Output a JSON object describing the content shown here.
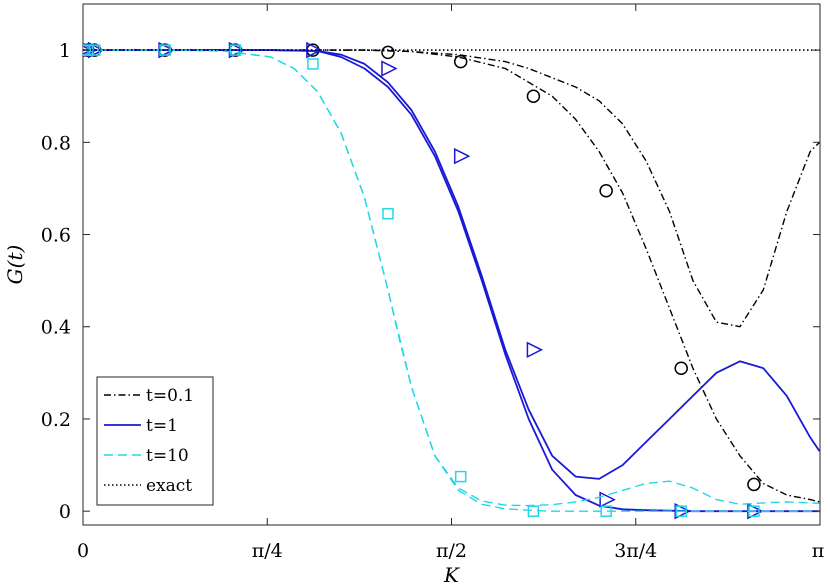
{
  "chart_data": {
    "type": "line",
    "xlabel": "K",
    "ylabel": "G(t)",
    "xlim": [
      0,
      3.14159
    ],
    "ylim": [
      -0.03,
      1.1
    ],
    "grid": false,
    "legend_position": "bottom-left",
    "x_ticks": [
      {
        "value": 0,
        "label": "0"
      },
      {
        "value": 0.7854,
        "label": "π/4"
      },
      {
        "value": 1.5708,
        "label": "π/2"
      },
      {
        "value": 2.3562,
        "label": "3π/4"
      },
      {
        "value": 3.14159,
        "label": "π"
      }
    ],
    "y_ticks": [
      {
        "value": 0,
        "label": "0"
      },
      {
        "value": 0.2,
        "label": "0.2"
      },
      {
        "value": 0.4,
        "label": "0.4"
      },
      {
        "value": 0.6,
        "label": "0.6"
      },
      {
        "value": 0.8,
        "label": "0.8"
      },
      {
        "value": 1,
        "label": "1"
      }
    ],
    "legend": [
      {
        "label": "t=0.1",
        "color": "#000000",
        "dash": "dashdot"
      },
      {
        "label": "t=1",
        "color": "#1a1ad6",
        "dash": "solid"
      },
      {
        "label": "t=10",
        "color": "#22d8e8",
        "dash": "dashed"
      },
      {
        "label": "exact",
        "color": "#000000",
        "dash": "dotted"
      }
    ],
    "series": [
      {
        "name": "t=0.1",
        "color": "#000000",
        "dash": "dashdot",
        "marker": "circle",
        "x": [
          0,
          0.4,
          0.8,
          1.0,
          1.2,
          1.4,
          1.6,
          1.8,
          1.9,
          2.0,
          2.1,
          2.2,
          2.3,
          2.4,
          2.5,
          2.6,
          2.7,
          2.8,
          2.9,
          3.0,
          3.1,
          3.14
        ],
        "y": [
          1,
          1,
          1,
          1,
          1,
          0.997,
          0.99,
          0.975,
          0.96,
          0.94,
          0.92,
          0.89,
          0.84,
          0.76,
          0.65,
          0.5,
          0.41,
          0.4,
          0.48,
          0.65,
          0.78,
          0.8
        ]
      },
      {
        "name": "t=0.1",
        "color": "#000000",
        "dash": "dashdot",
        "marker": "circle",
        "x": [
          0,
          0.4,
          0.8,
          1.0,
          1.2,
          1.4,
          1.6,
          1.8,
          2.0,
          2.1,
          2.2,
          2.3,
          2.4,
          2.5,
          2.6,
          2.7,
          2.8,
          2.9,
          3.0,
          3.1,
          3.14
        ],
        "y": [
          1,
          1,
          1,
          1,
          1,
          0.997,
          0.985,
          0.96,
          0.9,
          0.85,
          0.78,
          0.69,
          0.57,
          0.44,
          0.31,
          0.2,
          0.12,
          0.06,
          0.035,
          0.025,
          0.02
        ],
        "markers_x": [
          0,
          0.02,
          0.05,
          0.35,
          0.65,
          0.98,
          1.3,
          1.61,
          1.92,
          2.23,
          2.55,
          2.86
        ],
        "markers_y": [
          1,
          1,
          1,
          1,
          1,
          1,
          0.995,
          0.975,
          0.9,
          0.695,
          0.31,
          0.058
        ]
      },
      {
        "name": "t=1",
        "color": "#1a1ad6",
        "dash": "solid",
        "marker": "triangle-right",
        "x": [
          0,
          0.4,
          0.8,
          1.0,
          1.1,
          1.2,
          1.3,
          1.4,
          1.5,
          1.6,
          1.7,
          1.8,
          1.9,
          2.0,
          2.1,
          2.2,
          2.3,
          2.4,
          2.5,
          2.6,
          2.7,
          2.8,
          2.9,
          3.0,
          3.1,
          3.14
        ],
        "y": [
          1,
          1,
          1,
          0.998,
          0.99,
          0.97,
          0.93,
          0.87,
          0.78,
          0.66,
          0.51,
          0.35,
          0.22,
          0.12,
          0.075,
          0.07,
          0.1,
          0.15,
          0.2,
          0.25,
          0.3,
          0.325,
          0.31,
          0.25,
          0.16,
          0.13
        ]
      },
      {
        "name": "t=1",
        "color": "#1a1ad6",
        "dash": "solid",
        "marker": "triangle-right",
        "x": [
          0,
          0.4,
          0.8,
          1.0,
          1.1,
          1.2,
          1.3,
          1.4,
          1.5,
          1.6,
          1.7,
          1.8,
          1.9,
          2.0,
          2.1,
          2.2,
          2.3,
          2.4,
          2.6,
          2.8,
          3.0,
          3.14
        ],
        "y": [
          1,
          1,
          1,
          0.998,
          0.985,
          0.96,
          0.92,
          0.86,
          0.77,
          0.65,
          0.5,
          0.34,
          0.2,
          0.09,
          0.035,
          0.012,
          0.004,
          0.002,
          0,
          0,
          0,
          0
        ],
        "markers_x": [
          0,
          0.02,
          0.05,
          0.35,
          0.65,
          0.98,
          1.3,
          1.61,
          1.92,
          2.23,
          2.55,
          2.86
        ],
        "markers_y": [
          1,
          1,
          1,
          1,
          1,
          1,
          0.96,
          0.77,
          0.35,
          0.025,
          0,
          0
        ]
      },
      {
        "name": "t=10",
        "color": "#22d8e8",
        "dash": "dashed",
        "marker": "square",
        "x": [
          0,
          0.4,
          0.6,
          0.8,
          0.9,
          1.0,
          1.1,
          1.2,
          1.3,
          1.35,
          1.4,
          1.5,
          1.6,
          1.7,
          1.8,
          1.9,
          2.0,
          2.1,
          2.2,
          2.3,
          2.4,
          2.5,
          2.6,
          2.7,
          2.8,
          2.9,
          3.0,
          3.1,
          3.14
        ],
        "y": [
          1,
          1,
          0.998,
          0.985,
          0.96,
          0.91,
          0.82,
          0.68,
          0.48,
          0.37,
          0.27,
          0.12,
          0.05,
          0.022,
          0.013,
          0.012,
          0.014,
          0.02,
          0.03,
          0.045,
          0.06,
          0.065,
          0.05,
          0.025,
          0.015,
          0.018,
          0.02,
          0.018,
          0.017
        ]
      },
      {
        "name": "t=10",
        "color": "#22d8e8",
        "dash": "dashed",
        "marker": "square",
        "x": [
          0,
          0.4,
          0.6,
          0.8,
          0.9,
          1.0,
          1.1,
          1.2,
          1.3,
          1.4,
          1.5,
          1.6,
          1.7,
          1.8,
          1.9,
          2.0,
          2.2,
          2.4,
          2.6,
          2.8,
          3.0,
          3.14
        ],
        "y": [
          1,
          1,
          0.998,
          0.985,
          0.96,
          0.91,
          0.82,
          0.68,
          0.48,
          0.27,
          0.12,
          0.045,
          0.015,
          0.005,
          0.002,
          0,
          0,
          0,
          0,
          0,
          0,
          0
        ],
        "markers_x": [
          0,
          0.02,
          0.05,
          0.35,
          0.65,
          0.98,
          1.3,
          1.61,
          1.92,
          2.23,
          2.55,
          2.86
        ],
        "markers_y": [
          1,
          1,
          1,
          1,
          1,
          0.97,
          0.645,
          0.075,
          0,
          0,
          0,
          0
        ]
      },
      {
        "name": "exact",
        "color": "#000000",
        "dash": "dotted",
        "marker": "none",
        "x": [
          0,
          3.14159
        ],
        "y": [
          1,
          1
        ]
      }
    ]
  }
}
